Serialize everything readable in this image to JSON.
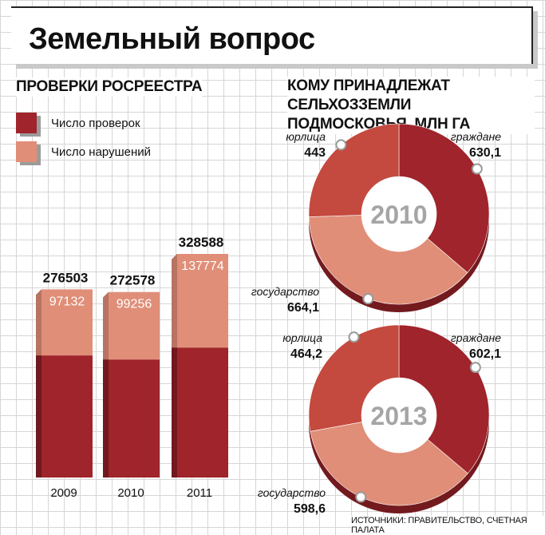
{
  "title": "Земельный вопрос",
  "bar_section_title": "ПРОВЕРКИ РОСРЕЕСТРА",
  "donut_section_title": "КОМУ ПРИНАДЛЕЖАТ СЕЛЬХОЗЗЕМЛИ ПОДМОСКОВЬЯ, МЛН ГА",
  "legend": [
    {
      "label": "Число проверок",
      "color": "#a0242b"
    },
    {
      "label": "Число нарушений",
      "color": "#e08e78"
    }
  ],
  "source": "ИСТОЧНИКИ: ПРАВИТЕЛЬСТВО, СЧЕТНАЯ ПАЛАТА",
  "colors": {
    "dark": "#a0242b",
    "mid": "#c4493e",
    "light": "#e08e78",
    "year_label": "#a5a5a5"
  },
  "chart_data": [
    {
      "type": "bar",
      "title": "ПРОВЕРКИ РОСРЕЕСТРА",
      "categories": [
        "2009",
        "2010",
        "2011"
      ],
      "series": [
        {
          "name": "Число проверок",
          "values": [
            276503,
            272578,
            328588
          ]
        },
        {
          "name": "Число нарушений",
          "values": [
            97132,
            99256,
            137774
          ]
        }
      ],
      "ylim": [
        0,
        340000
      ],
      "legend": "top-left",
      "grid": false
    },
    {
      "type": "pie",
      "title": "2010",
      "labels": [
        "граждане",
        "государство",
        "юрлица"
      ],
      "label_text": [
        "граждане",
        "государство",
        "юрлица"
      ],
      "value_text": [
        "630,1",
        "664,1",
        "443"
      ],
      "values": [
        630.1,
        664.1,
        443
      ],
      "colors": [
        "#a0242b",
        "#e08e78",
        "#c4493e"
      ]
    },
    {
      "type": "pie",
      "title": "2013",
      "labels": [
        "граждане",
        "государство",
        "юрлица"
      ],
      "label_text": [
        "граждане",
        "государство",
        "юрлица"
      ],
      "value_text": [
        "602,1",
        "598,6",
        "464,2"
      ],
      "values": [
        602.1,
        598.6,
        464.2
      ],
      "colors": [
        "#a0242b",
        "#e08e78",
        "#c4493e"
      ]
    }
  ]
}
